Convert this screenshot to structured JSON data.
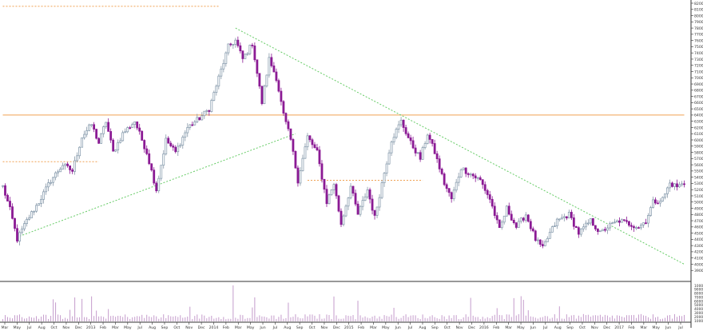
{
  "chart_data": {
    "type": "candlestick",
    "title": "",
    "xlabel": "",
    "ylabel": "",
    "ylim": [
      3800,
      8200
    ],
    "y_ticks": [
      3900,
      4000,
      4100,
      4200,
      4300,
      4400,
      4500,
      4600,
      4700,
      4800,
      4900,
      5000,
      5100,
      5200,
      5300,
      5400,
      5500,
      5600,
      5700,
      5800,
      5900,
      6000,
      6100,
      6200,
      6300,
      6400,
      6500,
      6600,
      6700,
      6800,
      6900,
      7000,
      7100,
      7200,
      7300,
      7400,
      7500,
      7600,
      7700,
      7800,
      7900,
      8000,
      8100,
      8200
    ],
    "volume_ticks": [
      10000,
      9000,
      8000,
      7000,
      6000,
      5000,
      4000,
      3000,
      2000,
      1000
    ],
    "x_ticks": [
      "Mar",
      "May",
      "Jul",
      "Aug",
      "Oct",
      "Nov",
      "Dec",
      "2013",
      "Feb",
      "Mar",
      "May",
      "Jul",
      "Aug",
      "Sep",
      "Oct",
      "Nov",
      "Dec",
      "2014",
      "Feb",
      "Mar",
      "May",
      "Jun",
      "Jul",
      "Aug",
      "Sep",
      "Oct",
      "Nov",
      "Dec",
      "2015",
      "Feb",
      "Mar",
      "May",
      "Jun",
      "Jul",
      "Aug",
      "Sep",
      "Oct",
      "Nov",
      "Dec",
      "2016",
      "Feb",
      "Mar",
      "May",
      "Jun",
      "Jul",
      "Aug",
      "Sep",
      "Oct",
      "Nov",
      "Dec",
      "2017",
      "Feb",
      "Mar",
      "May",
      "Jun",
      "Jul"
    ],
    "colors": {
      "up": "#7f95a8",
      "down": "#8b1a94",
      "trend_line": "#66cc66",
      "resistance": "#f0a050",
      "volume": "#c59ccc"
    },
    "anchors": [
      [
        0,
        5250
      ],
      [
        3,
        4880
      ],
      [
        6,
        4400
      ],
      [
        10,
        4700
      ],
      [
        15,
        5000
      ],
      [
        20,
        5350
      ],
      [
        25,
        5600
      ],
      [
        29,
        5500
      ],
      [
        33,
        6050
      ],
      [
        37,
        6250
      ],
      [
        40,
        5950
      ],
      [
        43,
        6300
      ],
      [
        46,
        5800
      ],
      [
        50,
        6100
      ],
      [
        55,
        6300
      ],
      [
        60,
        5800
      ],
      [
        64,
        5200
      ],
      [
        68,
        6000
      ],
      [
        72,
        5800
      ],
      [
        77,
        6200
      ],
      [
        82,
        6350
      ],
      [
        86,
        6500
      ],
      [
        90,
        7000
      ],
      [
        94,
        7500
      ],
      [
        97,
        7600
      ],
      [
        100,
        7300
      ],
      [
        104,
        7550
      ],
      [
        108,
        6600
      ],
      [
        111,
        7300
      ],
      [
        114,
        7000
      ],
      [
        117,
        6400
      ],
      [
        120,
        6000
      ],
      [
        123,
        5350
      ],
      [
        127,
        6050
      ],
      [
        131,
        5800
      ],
      [
        135,
        5000
      ],
      [
        138,
        5300
      ],
      [
        141,
        4650
      ],
      [
        145,
        5250
      ],
      [
        148,
        4800
      ],
      [
        152,
        5200
      ],
      [
        155,
        4750
      ],
      [
        158,
        5300
      ],
      [
        162,
        6000
      ],
      [
        166,
        6300
      ],
      [
        170,
        5950
      ],
      [
        174,
        5700
      ],
      [
        177,
        6100
      ],
      [
        180,
        5800
      ],
      [
        184,
        5300
      ],
      [
        187,
        5050
      ],
      [
        191,
        5550
      ],
      [
        195,
        5450
      ],
      [
        199,
        5350
      ],
      [
        203,
        5050
      ],
      [
        207,
        4550
      ],
      [
        210,
        4900
      ],
      [
        214,
        4600
      ],
      [
        218,
        4800
      ],
      [
        222,
        4400
      ],
      [
        225,
        4250
      ],
      [
        228,
        4500
      ],
      [
        231,
        4700
      ],
      [
        236,
        4800
      ],
      [
        240,
        4500
      ],
      [
        245,
        4700
      ],
      [
        249,
        4500
      ],
      [
        252,
        4600
      ],
      [
        257,
        4700
      ],
      [
        261,
        4650
      ],
      [
        265,
        4600
      ],
      [
        268,
        4700
      ],
      [
        271,
        5000
      ],
      [
        275,
        5050
      ],
      [
        278,
        5300
      ],
      [
        281,
        5250
      ],
      [
        284,
        5300
      ]
    ],
    "bar_count": 285,
    "trend_lines": [
      {
        "from": [
          7,
          4450
        ],
        "to": [
          122,
          6100
        ]
      },
      {
        "from": [
          97,
          7800
        ],
        "to": [
          284,
          4000
        ]
      }
    ],
    "resistance_lines": [
      {
        "from": [
          0,
          6400
        ],
        "to": [
          284,
          6400
        ],
        "style": "solid"
      },
      {
        "from": [
          0,
          5650
        ],
        "to": [
          40,
          5650
        ],
        "style": "dotted"
      },
      {
        "from": [
          127,
          5350
        ],
        "to": [
          175,
          5350
        ],
        "style": "dotted"
      },
      {
        "from": [
          0,
          8150
        ],
        "to": [
          90,
          8150
        ],
        "style": "dotted"
      }
    ]
  }
}
